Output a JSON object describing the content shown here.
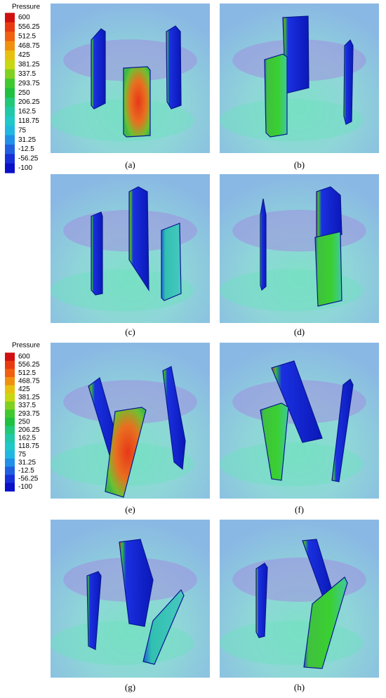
{
  "legends": [
    {
      "title": "Pressure",
      "labels": [
        "600",
        "556.25",
        "512.5",
        "468.75",
        "425",
        "381.25",
        "337.5",
        "293.75",
        "250",
        "206.25",
        "162.5",
        "118.75",
        "75",
        "31.25",
        "-12.5",
        "-56.25",
        "-100"
      ]
    },
    {
      "title": "Pressure",
      "labels": [
        "600",
        "556.25",
        "512.5",
        "468.75",
        "425",
        "381.25",
        "337.5",
        "293.75",
        "250",
        "206.25",
        "162.5",
        "118.75",
        "75",
        "31.25",
        "-12.5",
        "-56.25",
        "-100"
      ]
    }
  ],
  "panels": [
    {
      "caption": "(a)"
    },
    {
      "caption": "(b)"
    },
    {
      "caption": "(c)"
    },
    {
      "caption": "(d)"
    },
    {
      "caption": "(e)"
    },
    {
      "caption": "(f)"
    },
    {
      "caption": "(g)"
    },
    {
      "caption": "(h)"
    }
  ]
}
